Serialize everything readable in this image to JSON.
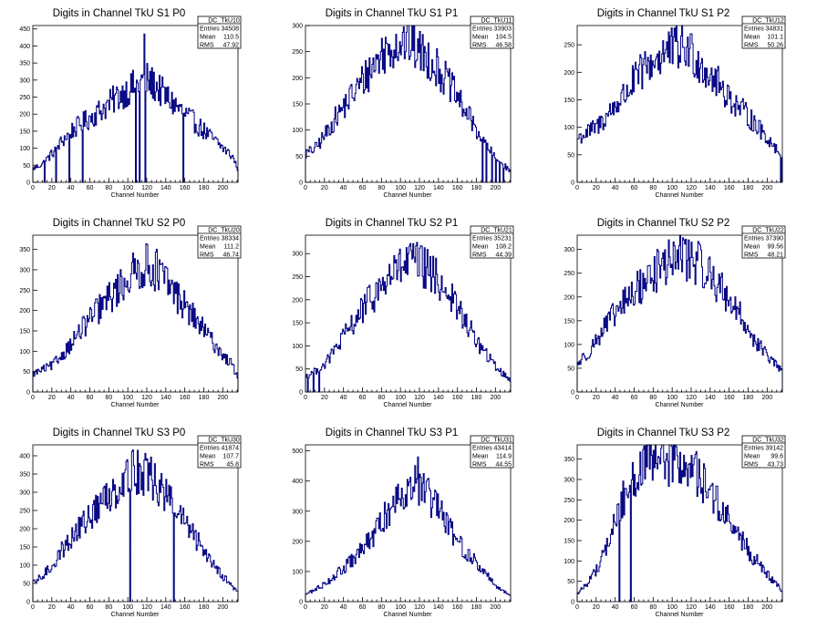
{
  "chart_data": [
    {
      "id": "TkU10",
      "type": "bar",
      "title": "Digits in Channel TkU S1 P0",
      "xlabel": "Channel Number",
      "ylabel": "",
      "xlim": [
        0,
        216
      ],
      "ylim": [
        0,
        460
      ],
      "xticks": [
        0,
        20,
        40,
        60,
        80,
        100,
        120,
        140,
        160,
        180,
        200
      ],
      "yticks": [
        0,
        50,
        100,
        150,
        200,
        250,
        300,
        350,
        400,
        450
      ],
      "stats": {
        "name": "DC_TkU10",
        "entries": "34508",
        "mean": "110.5",
        "rms": "47.92"
      },
      "dips": [
        [
          12,
          0
        ],
        [
          24,
          0
        ],
        [
          38,
          0
        ],
        [
          52,
          0
        ],
        [
          108,
          0
        ],
        [
          112,
          0
        ],
        [
          118,
          0
        ],
        [
          158,
          0
        ]
      ],
      "spikes": [
        [
          117,
          435
        ]
      ]
    },
    {
      "id": "TkU11",
      "type": "bar",
      "title": "Digits in Channel TkU S1 P1",
      "xlabel": "Channel Number",
      "ylabel": "",
      "xlim": [
        0,
        216
      ],
      "ylim": [
        0,
        300
      ],
      "xticks": [
        0,
        20,
        40,
        60,
        80,
        100,
        120,
        140,
        160,
        180,
        200
      ],
      "yticks": [
        0,
        50,
        100,
        150,
        200,
        250,
        300
      ],
      "stats": {
        "name": "DC_TkU11",
        "entries": "33903",
        "mean": "104.5",
        "rms": "46.58"
      },
      "dips": [
        [
          186,
          0
        ],
        [
          190,
          0
        ],
        [
          196,
          0
        ],
        [
          200,
          0
        ],
        [
          204,
          0
        ],
        [
          208,
          0
        ]
      ],
      "spikes": []
    },
    {
      "id": "TkU12",
      "type": "bar",
      "title": "Digits in Channel TkU S1 P2",
      "xlabel": "Channel Number",
      "ylabel": "",
      "xlim": [
        0,
        216
      ],
      "ylim": [
        0,
        285
      ],
      "xticks": [
        0,
        20,
        40,
        60,
        80,
        100,
        120,
        140,
        160,
        180,
        200
      ],
      "yticks": [
        0,
        50,
        100,
        150,
        200,
        250
      ],
      "stats": {
        "name": "DC_TkU12",
        "entries": "34831",
        "mean": "101.1",
        "rms": "50.26"
      },
      "dips": [
        [
          214,
          0
        ]
      ],
      "spikes": [
        [
          119,
          270
        ]
      ]
    },
    {
      "id": "TkU20",
      "type": "bar",
      "title": "Digits in Channel TkU S2 P0",
      "xlabel": "Channel Number",
      "ylabel": "",
      "xlim": [
        0,
        216
      ],
      "ylim": [
        0,
        385
      ],
      "xticks": [
        0,
        20,
        40,
        60,
        80,
        100,
        120,
        140,
        160,
        180,
        200
      ],
      "yticks": [
        0,
        50,
        100,
        150,
        200,
        250,
        300,
        350
      ],
      "stats": {
        "name": "DC_TkU20",
        "entries": "38334",
        "mean": "111.2",
        "rms": "46.74"
      },
      "dips": [],
      "spikes": [
        [
          120,
          362
        ]
      ]
    },
    {
      "id": "TkU21",
      "type": "bar",
      "title": "Digits in Channel TkU S2 P1",
      "xlabel": "Channel Number",
      "ylabel": "",
      "xlim": [
        0,
        216
      ],
      "ylim": [
        0,
        340
      ],
      "xticks": [
        0,
        20,
        40,
        60,
        80,
        100,
        120,
        140,
        160,
        180,
        200
      ],
      "yticks": [
        0,
        50,
        100,
        150,
        200,
        250,
        300
      ],
      "stats": {
        "name": "DC_TkU21",
        "entries": "35231",
        "mean": "108.2",
        "rms": "44.39"
      },
      "dips": [
        [
          2,
          0
        ],
        [
          8,
          0
        ],
        [
          14,
          0
        ]
      ],
      "spikes": [
        [
          110,
          322
        ]
      ]
    },
    {
      "id": "TkU22",
      "type": "bar",
      "title": "Digits in Channel TkU S2 P2",
      "xlabel": "Channel Number",
      "ylabel": "",
      "xlim": [
        0,
        216
      ],
      "ylim": [
        0,
        330
      ],
      "xticks": [
        0,
        20,
        40,
        60,
        80,
        100,
        120,
        140,
        160,
        180,
        200
      ],
      "yticks": [
        0,
        50,
        100,
        150,
        200,
        250,
        300
      ],
      "stats": {
        "name": "DC_TkU22",
        "entries": "37390",
        "mean": "99.56",
        "rms": "48.21"
      },
      "dips": [],
      "spikes": [
        [
          112,
          320
        ]
      ]
    },
    {
      "id": "TkU30",
      "type": "bar",
      "title": "Digits in Channel TkU S3 P0",
      "xlabel": "Channel Number",
      "ylabel": "",
      "xlim": [
        0,
        216
      ],
      "ylim": [
        0,
        430
      ],
      "xticks": [
        0,
        20,
        40,
        60,
        80,
        100,
        120,
        140,
        160,
        180,
        200
      ],
      "yticks": [
        0,
        50,
        100,
        150,
        200,
        250,
        300,
        350,
        400
      ],
      "stats": {
        "name": "DC_TkU30",
        "entries": "41874",
        "mean": "107.7",
        "rms": "45.8"
      },
      "dips": [
        [
          102,
          0
        ],
        [
          148,
          0
        ]
      ],
      "spikes": [
        [
          104,
          412
        ]
      ]
    },
    {
      "id": "TkU31",
      "type": "bar",
      "title": "Digits in Channel TkU S3 P1",
      "xlabel": "Channel Number",
      "ylabel": "",
      "xlim": [
        0,
        216
      ],
      "ylim": [
        0,
        520
      ],
      "xticks": [
        0,
        20,
        40,
        60,
        80,
        100,
        120,
        140,
        160,
        180,
        200
      ],
      "yticks": [
        0,
        100,
        200,
        300,
        400,
        500
      ],
      "stats": {
        "name": "DC_TkU31",
        "entries": "43414",
        "mean": "114.9",
        "rms": "44.55"
      },
      "dips": [],
      "spikes": [
        [
          118,
          480
        ]
      ]
    },
    {
      "id": "TkU32",
      "type": "bar",
      "title": "Digits in Channel TkU S3 P2",
      "xlabel": "Channel Number",
      "ylabel": "",
      "xlim": [
        0,
        216
      ],
      "ylim": [
        0,
        385
      ],
      "xticks": [
        0,
        20,
        40,
        60,
        80,
        100,
        120,
        140,
        160,
        180,
        200
      ],
      "yticks": [
        0,
        50,
        100,
        150,
        200,
        250,
        300,
        350
      ],
      "stats": {
        "name": "DC_TkU32",
        "entries": "39142",
        "mean": "99.6",
        "rms": "43.73"
      },
      "dips": [
        [
          44,
          0
        ],
        [
          56,
          0
        ]
      ],
      "spikes": []
    }
  ],
  "profiles": [
    [
      [
        0,
        40
      ],
      [
        10,
        55
      ],
      [
        20,
        85
      ],
      [
        30,
        120
      ],
      [
        40,
        150
      ],
      [
        50,
        170
      ],
      [
        60,
        190
      ],
      [
        70,
        210
      ],
      [
        80,
        230
      ],
      [
        90,
        255
      ],
      [
        100,
        270
      ],
      [
        110,
        290
      ],
      [
        120,
        300
      ],
      [
        130,
        280
      ],
      [
        140,
        250
      ],
      [
        150,
        225
      ],
      [
        160,
        200
      ],
      [
        170,
        175
      ],
      [
        180,
        150
      ],
      [
        190,
        125
      ],
      [
        200,
        100
      ],
      [
        210,
        75
      ],
      [
        216,
        35
      ]
    ],
    [
      [
        0,
        55
      ],
      [
        10,
        65
      ],
      [
        20,
        90
      ],
      [
        30,
        120
      ],
      [
        40,
        145
      ],
      [
        50,
        170
      ],
      [
        60,
        195
      ],
      [
        70,
        220
      ],
      [
        80,
        245
      ],
      [
        90,
        260
      ],
      [
        100,
        270
      ],
      [
        110,
        265
      ],
      [
        120,
        250
      ],
      [
        130,
        235
      ],
      [
        140,
        215
      ],
      [
        150,
        190
      ],
      [
        160,
        160
      ],
      [
        170,
        130
      ],
      [
        180,
        100
      ],
      [
        190,
        70
      ],
      [
        200,
        45
      ],
      [
        210,
        30
      ],
      [
        216,
        20
      ]
    ],
    [
      [
        0,
        80
      ],
      [
        10,
        90
      ],
      [
        20,
        100
      ],
      [
        30,
        120
      ],
      [
        40,
        140
      ],
      [
        50,
        160
      ],
      [
        60,
        185
      ],
      [
        70,
        205
      ],
      [
        80,
        220
      ],
      [
        90,
        235
      ],
      [
        100,
        240
      ],
      [
        110,
        245
      ],
      [
        120,
        235
      ],
      [
        130,
        215
      ],
      [
        140,
        195
      ],
      [
        150,
        175
      ],
      [
        160,
        155
      ],
      [
        170,
        135
      ],
      [
        180,
        120
      ],
      [
        190,
        100
      ],
      [
        200,
        80
      ],
      [
        210,
        60
      ],
      [
        216,
        40
      ]
    ],
    [
      [
        0,
        45
      ],
      [
        10,
        55
      ],
      [
        20,
        65
      ],
      [
        30,
        90
      ],
      [
        40,
        120
      ],
      [
        50,
        150
      ],
      [
        60,
        180
      ],
      [
        70,
        205
      ],
      [
        80,
        230
      ],
      [
        90,
        255
      ],
      [
        100,
        280
      ],
      [
        110,
        300
      ],
      [
        120,
        310
      ],
      [
        130,
        300
      ],
      [
        140,
        270
      ],
      [
        150,
        240
      ],
      [
        160,
        210
      ],
      [
        170,
        180
      ],
      [
        180,
        150
      ],
      [
        190,
        120
      ],
      [
        200,
        90
      ],
      [
        210,
        65
      ],
      [
        216,
        30
      ]
    ],
    [
      [
        0,
        35
      ],
      [
        10,
        45
      ],
      [
        20,
        60
      ],
      [
        30,
        90
      ],
      [
        40,
        120
      ],
      [
        50,
        150
      ],
      [
        60,
        180
      ],
      [
        70,
        205
      ],
      [
        80,
        230
      ],
      [
        90,
        255
      ],
      [
        100,
        270
      ],
      [
        110,
        280
      ],
      [
        120,
        275
      ],
      [
        130,
        260
      ],
      [
        140,
        240
      ],
      [
        150,
        215
      ],
      [
        160,
        180
      ],
      [
        170,
        145
      ],
      [
        180,
        110
      ],
      [
        190,
        80
      ],
      [
        200,
        55
      ],
      [
        210,
        35
      ],
      [
        216,
        25
      ]
    ],
    [
      [
        0,
        60
      ],
      [
        10,
        80
      ],
      [
        20,
        110
      ],
      [
        30,
        140
      ],
      [
        40,
        165
      ],
      [
        50,
        190
      ],
      [
        60,
        210
      ],
      [
        70,
        230
      ],
      [
        80,
        250
      ],
      [
        90,
        265
      ],
      [
        100,
        280
      ],
      [
        110,
        285
      ],
      [
        120,
        280
      ],
      [
        130,
        265
      ],
      [
        140,
        245
      ],
      [
        150,
        220
      ],
      [
        160,
        195
      ],
      [
        170,
        165
      ],
      [
        180,
        130
      ],
      [
        190,
        100
      ],
      [
        200,
        75
      ],
      [
        210,
        55
      ],
      [
        216,
        40
      ]
    ],
    [
      [
        0,
        50
      ],
      [
        10,
        70
      ],
      [
        20,
        100
      ],
      [
        30,
        140
      ],
      [
        40,
        175
      ],
      [
        50,
        205
      ],
      [
        60,
        235
      ],
      [
        70,
        265
      ],
      [
        80,
        295
      ],
      [
        90,
        320
      ],
      [
        100,
        345
      ],
      [
        110,
        360
      ],
      [
        120,
        350
      ],
      [
        130,
        320
      ],
      [
        140,
        290
      ],
      [
        150,
        255
      ],
      [
        160,
        215
      ],
      [
        170,
        175
      ],
      [
        180,
        140
      ],
      [
        190,
        105
      ],
      [
        200,
        70
      ],
      [
        210,
        40
      ],
      [
        216,
        25
      ]
    ],
    [
      [
        0,
        25
      ],
      [
        10,
        40
      ],
      [
        20,
        60
      ],
      [
        30,
        85
      ],
      [
        40,
        110
      ],
      [
        50,
        140
      ],
      [
        60,
        175
      ],
      [
        70,
        215
      ],
      [
        80,
        265
      ],
      [
        90,
        315
      ],
      [
        100,
        365
      ],
      [
        110,
        390
      ],
      [
        120,
        380
      ],
      [
        130,
        345
      ],
      [
        140,
        300
      ],
      [
        150,
        250
      ],
      [
        160,
        200
      ],
      [
        170,
        160
      ],
      [
        180,
        125
      ],
      [
        190,
        90
      ],
      [
        200,
        55
      ],
      [
        210,
        30
      ],
      [
        216,
        20
      ]
    ],
    [
      [
        0,
        20
      ],
      [
        10,
        45
      ],
      [
        20,
        80
      ],
      [
        30,
        130
      ],
      [
        40,
        200
      ],
      [
        50,
        265
      ],
      [
        60,
        310
      ],
      [
        70,
        330
      ],
      [
        80,
        340
      ],
      [
        90,
        345
      ],
      [
        100,
        340
      ],
      [
        110,
        335
      ],
      [
        120,
        325
      ],
      [
        130,
        300
      ],
      [
        140,
        270
      ],
      [
        150,
        230
      ],
      [
        160,
        195
      ],
      [
        170,
        160
      ],
      [
        180,
        125
      ],
      [
        190,
        95
      ],
      [
        200,
        65
      ],
      [
        210,
        40
      ],
      [
        216,
        25
      ]
    ]
  ]
}
